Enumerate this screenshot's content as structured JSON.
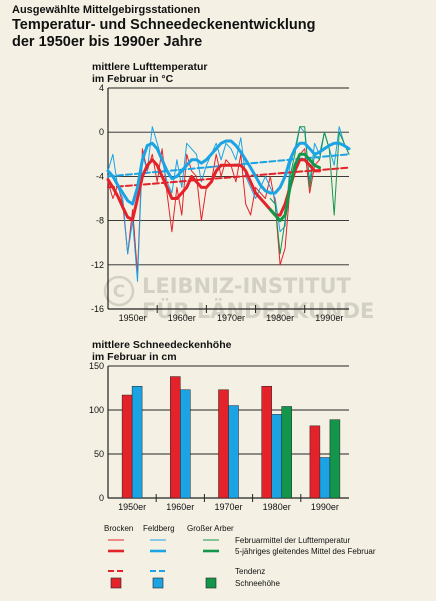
{
  "header": {
    "kicker": "Ausgewählte Mittelgebirgsstationen",
    "title_line1": "Temperatur- und Schneedeckenentwicklung",
    "title_line2": "der 1950er bis 1990er Jahre"
  },
  "watermark": {
    "line1": "LEIBNIZ-INSTITUT",
    "line2": "FÜR LÄNDERKUNDE"
  },
  "temp_chart": {
    "title_line1": "mittlere Lufttemperatur",
    "title_line2": "im Februar in °C"
  },
  "snow_chart": {
    "title_line1": "mittlere Schneedeckenhöhe",
    "title_line2": "im Februar in cm"
  },
  "legend": {
    "stations": [
      "Brocken",
      "Feldberg",
      "Großer Arber"
    ],
    "rows": [
      {
        "label": "Februarmittel der Lufttemperatur"
      },
      {
        "label": "5-jähriges gleitendes Mittel des Februar"
      },
      {
        "label": "Tendenz"
      },
      {
        "label": "Schneehöhe"
      }
    ]
  },
  "colors": {
    "brocken": "#e3222a",
    "feldberg": "#1ba3e4",
    "arber": "#14964a",
    "background": "#f4f1e4"
  },
  "chart_data": [
    {
      "type": "line",
      "title": "mittlere Lufttemperatur im Februar in °C",
      "x_range": [
        1950,
        1999
      ],
      "ylim": [
        -16,
        4
      ],
      "yticks": [
        4,
        0,
        -4,
        -8,
        -12,
        -16
      ],
      "x_tick_labels": [
        "1950er",
        "1960er",
        "1970er",
        "1980er",
        "1990er"
      ],
      "grid": true,
      "series": [
        {
          "name": "Brocken",
          "kind": "monthly",
          "x": [
            1950,
            1951,
            1952,
            1953,
            1954,
            1955,
            1956,
            1957,
            1958,
            1959,
            1960,
            1961,
            1962,
            1963,
            1964,
            1965,
            1966,
            1967,
            1968,
            1969,
            1970,
            1971,
            1972,
            1973,
            1974,
            1975,
            1976,
            1977,
            1978,
            1979,
            1980,
            1981,
            1982,
            1983,
            1984,
            1985,
            1986,
            1987,
            1988,
            1989,
            1990,
            1991,
            1992,
            1993
          ],
          "y": [
            -4.5,
            -6.0,
            -4.8,
            -6.5,
            -11.0,
            -7.0,
            -12.8,
            -1.5,
            -3.5,
            -2.0,
            -4.5,
            -1.5,
            -5.5,
            -9.0,
            -5.0,
            -7.5,
            -2.0,
            -3.5,
            -4.0,
            -8.0,
            -5.0,
            -4.5,
            -2.0,
            -4.0,
            -2.5,
            -3.0,
            -4.5,
            -2.0,
            -6.5,
            -7.5,
            -5.0,
            -5.5,
            -6.0,
            -4.0,
            -6.5,
            -12.0,
            -10.5,
            -5.0,
            -3.0,
            -2.0,
            -1.5,
            -5.5,
            -3.0,
            -2.5
          ]
        },
        {
          "name": "Brocken",
          "kind": "moving_average",
          "x": [
            1950,
            1951,
            1952,
            1953,
            1954,
            1955,
            1956,
            1957,
            1958,
            1959,
            1960,
            1961,
            1962,
            1963,
            1964,
            1965,
            1966,
            1967,
            1968,
            1969,
            1970,
            1971,
            1972,
            1973,
            1974,
            1975,
            1976,
            1977,
            1978,
            1979,
            1980,
            1981,
            1982,
            1983,
            1984,
            1985,
            1986,
            1987,
            1988,
            1989,
            1990,
            1991,
            1992,
            1993
          ],
          "y": [
            -4.3,
            -5.0,
            -5.8,
            -6.8,
            -7.7,
            -7.9,
            -6.0,
            -4.0,
            -3.0,
            -2.5,
            -3.0,
            -4.0,
            -5.0,
            -6.0,
            -6.0,
            -5.5,
            -5.0,
            -4.0,
            -4.5,
            -5.0,
            -5.0,
            -4.5,
            -3.5,
            -3.0,
            -3.0,
            -3.0,
            -3.0,
            -3.0,
            -3.5,
            -4.5,
            -5.5,
            -6.0,
            -6.5,
            -7.0,
            -7.5,
            -7.5,
            -6.5,
            -5.0,
            -3.5,
            -2.5,
            -2.5,
            -3.0,
            -3.5,
            -3.5
          ]
        },
        {
          "name": "Brocken",
          "kind": "trend",
          "x": [
            1950,
            1999
          ],
          "y": [
            -5.0,
            -3.2
          ]
        },
        {
          "name": "Feldberg",
          "kind": "monthly",
          "x": [
            1950,
            1951,
            1952,
            1953,
            1954,
            1955,
            1956,
            1957,
            1958,
            1959,
            1960,
            1961,
            1962,
            1963,
            1964,
            1965,
            1966,
            1967,
            1968,
            1969,
            1970,
            1971,
            1972,
            1973,
            1974,
            1975,
            1976,
            1977,
            1978,
            1979,
            1980,
            1981,
            1982,
            1983,
            1984,
            1985,
            1986,
            1987,
            1988,
            1989,
            1990,
            1991,
            1992,
            1993,
            1994,
            1995,
            1996,
            1997,
            1998,
            1999
          ],
          "y": [
            -3.5,
            -2.0,
            -5.0,
            -6.0,
            -11.0,
            -8.0,
            -13.5,
            -2.0,
            -3.5,
            0.5,
            -1.0,
            -2.5,
            -4.5,
            -5.5,
            -2.5,
            -5.0,
            -1.0,
            -1.5,
            -2.0,
            -4.5,
            -3.0,
            -2.0,
            -1.0,
            -2.5,
            -1.0,
            -1.5,
            -2.5,
            -0.5,
            -4.0,
            -5.0,
            -6.0,
            -5.0,
            -4.0,
            -5.0,
            -6.0,
            -9.0,
            -8.5,
            -3.0,
            -1.5,
            0.5,
            0.0,
            -4.5,
            -1.0,
            -2.0,
            0.0,
            -1.5,
            -3.0,
            0.5,
            -1.0,
            -2.0
          ]
        },
        {
          "name": "Feldberg",
          "kind": "moving_average",
          "x": [
            1950,
            1951,
            1952,
            1953,
            1954,
            1955,
            1956,
            1957,
            1958,
            1959,
            1960,
            1961,
            1962,
            1963,
            1964,
            1965,
            1966,
            1967,
            1968,
            1969,
            1970,
            1971,
            1972,
            1973,
            1974,
            1975,
            1976,
            1977,
            1978,
            1979,
            1980,
            1981,
            1982,
            1983,
            1984,
            1985,
            1986,
            1987,
            1988,
            1989,
            1990,
            1991,
            1992,
            1993,
            1994,
            1995,
            1996,
            1997,
            1998,
            1999
          ],
          "y": [
            -3.5,
            -4.0,
            -4.8,
            -5.5,
            -6.2,
            -6.5,
            -5.0,
            -2.5,
            -1.2,
            -1.0,
            -1.5,
            -2.5,
            -3.5,
            -4.2,
            -4.0,
            -3.5,
            -3.0,
            -2.5,
            -2.5,
            -2.8,
            -2.5,
            -2.0,
            -1.5,
            -1.0,
            -0.8,
            -0.8,
            -1.2,
            -1.8,
            -2.5,
            -3.2,
            -4.0,
            -4.8,
            -5.3,
            -5.5,
            -5.5,
            -5.0,
            -4.0,
            -2.5,
            -1.5,
            -1.0,
            -1.0,
            -1.5,
            -2.0,
            -1.8,
            -1.5,
            -1.2,
            -1.0,
            -1.0,
            -1.2,
            -1.5
          ]
        },
        {
          "name": "Feldberg",
          "kind": "trend",
          "x": [
            1950,
            1999
          ],
          "y": [
            -4.0,
            -2.0
          ]
        },
        {
          "name": "Großer Arber",
          "kind": "monthly",
          "x": [
            1983,
            1984,
            1985,
            1986,
            1987,
            1988,
            1989,
            1990,
            1991,
            1992,
            1993,
            1994,
            1995,
            1996,
            1997,
            1998,
            1999
          ],
          "y": [
            -6.0,
            -6.5,
            -11.0,
            -8.0,
            -4.0,
            -2.0,
            0.5,
            0.5,
            -5.0,
            -2.0,
            -2.5,
            0.0,
            -1.5,
            -7.5,
            0.0,
            -1.0,
            -2.0
          ]
        },
        {
          "name": "Großer Arber",
          "kind": "moving_average",
          "x": [
            1983,
            1984,
            1985,
            1986,
            1987,
            1988,
            1989,
            1990,
            1991,
            1992,
            1993
          ],
          "y": [
            -7.0,
            -7.5,
            -8.0,
            -7.5,
            -5.0,
            -3.0,
            -2.0,
            -2.0,
            -2.5,
            -3.0,
            -3.2
          ]
        }
      ]
    },
    {
      "type": "bar",
      "title": "mittlere Schneedeckenhöhe im Februar in cm",
      "categories": [
        "1950er",
        "1960er",
        "1970er",
        "1980er",
        "1990er"
      ],
      "ylim": [
        0,
        150
      ],
      "yticks": [
        0,
        50,
        100,
        150
      ],
      "grid": true,
      "series": [
        {
          "name": "Brocken",
          "values": [
            117,
            138,
            123,
            127,
            82
          ]
        },
        {
          "name": "Feldberg",
          "values": [
            127,
            123,
            105,
            95,
            46
          ]
        },
        {
          "name": "Großer Arber",
          "values": [
            null,
            null,
            null,
            104,
            89
          ]
        }
      ]
    }
  ]
}
